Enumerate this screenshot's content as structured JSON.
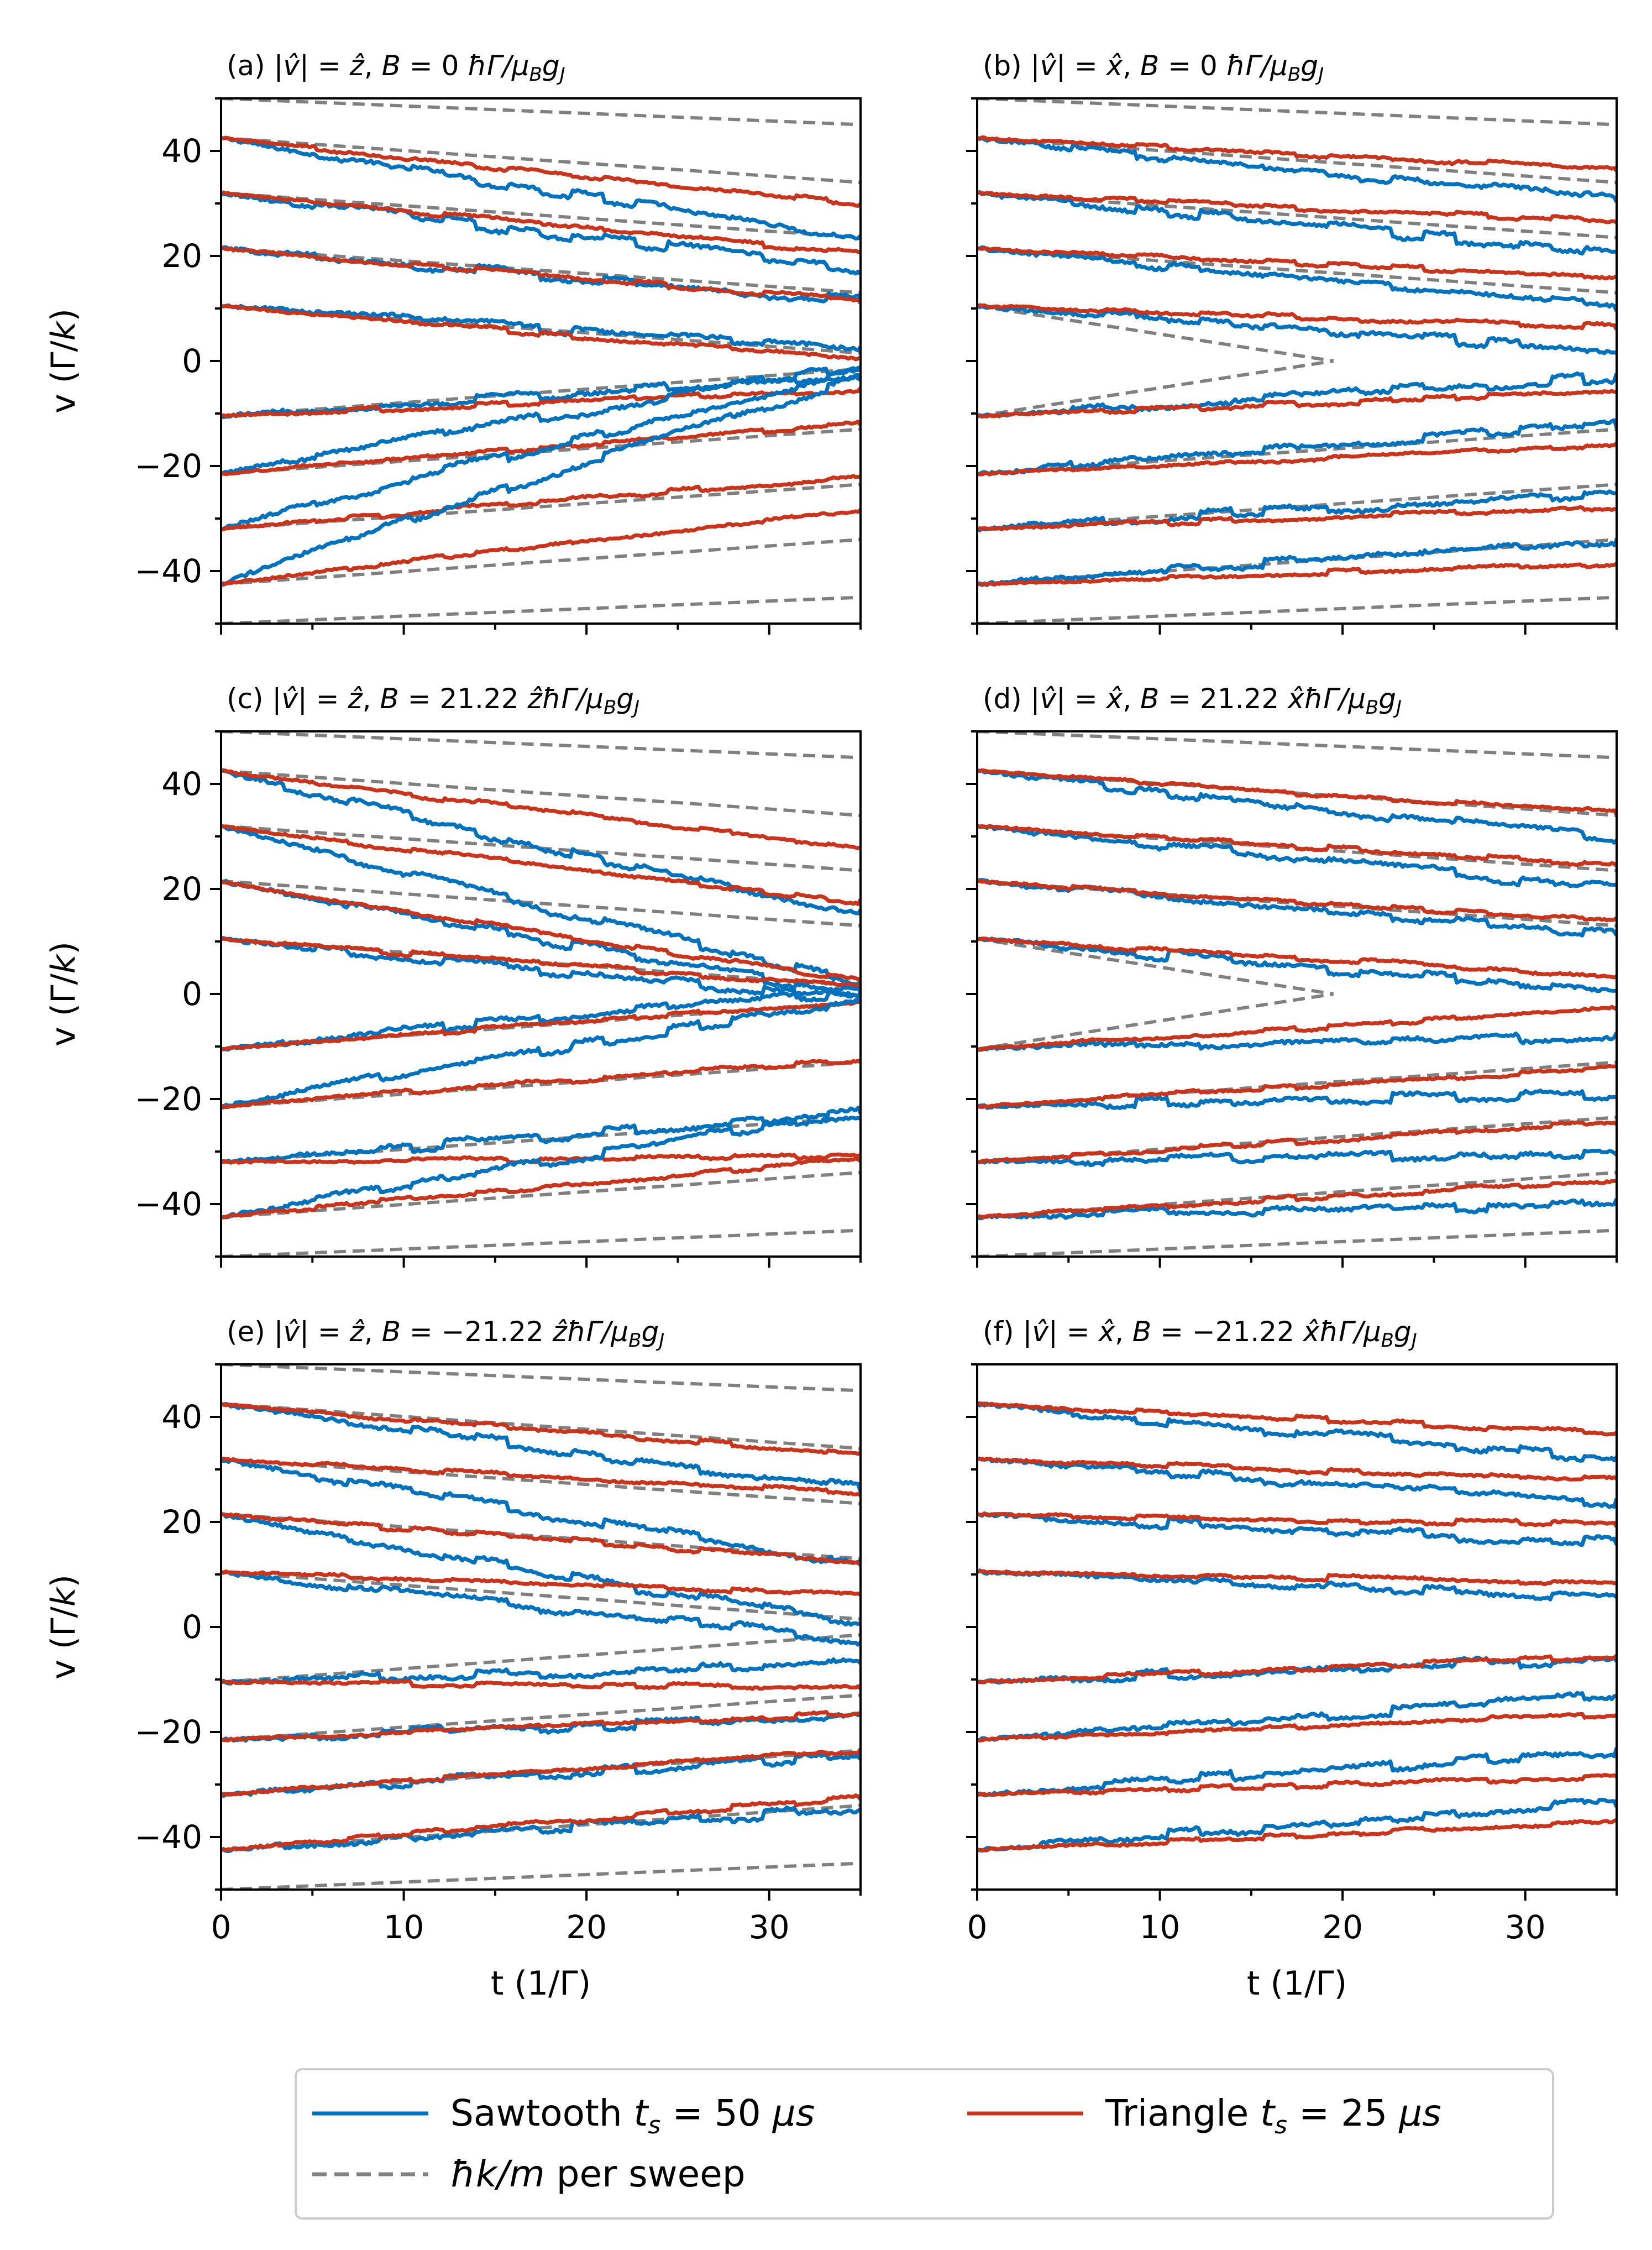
{
  "figure": {
    "colors": {
      "sawtooth": "#0072bd",
      "triangle": "#c8341c",
      "guide": "#808080"
    },
    "legend": {
      "location": "bottom-center",
      "entries": [
        {
          "key": "sawtooth",
          "label": "Sawtooth t_s = 50 μs",
          "parts": [
            "Sawtooth ",
            "t",
            "s",
            " = 50 ",
            "μs"
          ],
          "style": "solid"
        },
        {
          "key": "triangle",
          "label": "Triangle t_s = 25 μs",
          "parts": [
            "Triangle ",
            "t",
            "s",
            " = 25 ",
            "μs"
          ],
          "style": "solid"
        },
        {
          "key": "guide",
          "label": "ħk/m per sweep",
          "parts": [
            "ħk/m",
            " per sweep"
          ],
          "style": "dashed"
        }
      ]
    }
  },
  "chart_data": [
    {
      "id": "a",
      "type": "line",
      "row": 0,
      "col": 0,
      "title": "(a) |v̂| = ẑ, B = 0 ħΓ/μ_B g_J",
      "title_parts": {
        "prefix": "(a) ",
        "v": "v",
        "dir": "z",
        "b_value": " = 0 ",
        "b_dir": "",
        "unit": "ħΓ/μ",
        "unit_sub": "B",
        "g": "g",
        "g_sub": "J"
      },
      "xlabel": "t (1/Γ)",
      "ylabel": "v (Γ/k)",
      "xlim": [
        0,
        35
      ],
      "ylim": [
        -50,
        50
      ],
      "xticks": [
        0,
        10,
        20,
        30
      ],
      "yticks": [
        -40,
        -20,
        0,
        20,
        40
      ],
      "initial_velocities": [
        42.5,
        32,
        21.5,
        10.5,
        -10.5,
        -21.5,
        -32,
        -42.5
      ],
      "sawtooth_final": [
        23.5,
        17.5,
        11.5,
        2,
        -3,
        -1,
        -2,
        -3
      ],
      "triangle_final": [
        30,
        20.5,
        11.5,
        0.5,
        -5.5,
        -12,
        -22,
        -28.5
      ],
      "guide_lines": [
        [
          [
            0,
            50
          ],
          [
            35,
            45
          ]
        ],
        [
          [
            0,
            42.5
          ],
          [
            35,
            34
          ]
        ],
        [
          [
            0,
            32
          ],
          [
            35,
            23.5
          ]
        ],
        [
          [
            0,
            21.5
          ],
          [
            35,
            13
          ]
        ],
        [
          [
            0,
            10.5
          ],
          [
            35,
            1.5
          ]
        ],
        [
          [
            0,
            -10.5
          ],
          [
            35,
            -1.5
          ]
        ],
        [
          [
            0,
            -21.5
          ],
          [
            35,
            -13
          ]
        ],
        [
          [
            0,
            -32
          ],
          [
            35,
            -23.5
          ]
        ],
        [
          [
            0,
            -42.5
          ],
          [
            35,
            -34
          ]
        ],
        [
          [
            0,
            -50
          ],
          [
            35,
            -45
          ]
        ]
      ]
    },
    {
      "id": "b",
      "type": "line",
      "row": 0,
      "col": 1,
      "title": "(b) |v̂| = x̂, B = 0 ħΓ/μ_B g_J",
      "title_parts": {
        "prefix": "(b) ",
        "v": "v",
        "dir": "x",
        "b_value": " = 0 ",
        "b_dir": "",
        "unit": "ħΓ/μ",
        "unit_sub": "B",
        "g": "g",
        "g_sub": "J"
      },
      "xlabel": "t (1/Γ)",
      "ylabel": "",
      "xlim": [
        0,
        35
      ],
      "ylim": [
        -50,
        50
      ],
      "xticks": [
        0,
        10,
        20,
        30
      ],
      "yticks": [
        -40,
        -20,
        0,
        20,
        40
      ],
      "initial_velocities": [
        42.5,
        32,
        21.5,
        10.5,
        -10.5,
        -21.5,
        -32,
        -42.5
      ],
      "sawtooth_final": [
        30.5,
        20.5,
        10.5,
        2,
        -3,
        -12,
        -25,
        -34.5
      ],
      "triangle_final": [
        36.5,
        26.5,
        16,
        6.5,
        -6,
        -16,
        -28,
        -38.5
      ],
      "guide_lines": [
        [
          [
            0,
            50
          ],
          [
            35,
            45
          ]
        ],
        [
          [
            0,
            42.5
          ],
          [
            35,
            34
          ]
        ],
        [
          [
            0,
            32
          ],
          [
            35,
            23.5
          ]
        ],
        [
          [
            0,
            21.5
          ],
          [
            35,
            13
          ]
        ],
        [
          [
            0,
            10.5
          ],
          [
            19.5,
            0
          ]
        ],
        [
          [
            0,
            -10.5
          ],
          [
            19.5,
            0
          ]
        ],
        [
          [
            0,
            -21.5
          ],
          [
            35,
            -13
          ]
        ],
        [
          [
            0,
            -32
          ],
          [
            35,
            -23.5
          ]
        ],
        [
          [
            0,
            -42.5
          ],
          [
            35,
            -34
          ]
        ],
        [
          [
            0,
            -50
          ],
          [
            35,
            -45
          ]
        ]
      ]
    },
    {
      "id": "c",
      "type": "line",
      "row": 1,
      "col": 0,
      "title": "(c) |v̂| = ẑ, B = 21.22 ẑħΓ/μ_B g_J",
      "title_parts": {
        "prefix": "(c) ",
        "v": "v",
        "dir": "z",
        "b_value": " = 21.22 ",
        "b_dir": "z",
        "unit": "ħΓ/μ",
        "unit_sub": "B",
        "g": "g",
        "g_sub": "J"
      },
      "xlabel": "t (1/Γ)",
      "ylabel": "v (Γ/k)",
      "xlim": [
        0,
        35
      ],
      "ylim": [
        -50,
        50
      ],
      "xticks": [
        0,
        10,
        20,
        30
      ],
      "yticks": [
        -40,
        -20,
        0,
        20,
        40
      ],
      "initial_velocities": [
        42.5,
        32,
        21.5,
        10.5,
        -10.5,
        -21.5,
        -32,
        -42.5
      ],
      "sawtooth_final": [
        15,
        2,
        0,
        -1,
        1,
        -1,
        -23,
        -22.5
      ],
      "triangle_final": [
        28,
        17.5,
        2.5,
        1.5,
        -1.5,
        -12.5,
        -31,
        -31.5
      ],
      "guide_lines": [
        [
          [
            0,
            50
          ],
          [
            35,
            45
          ]
        ],
        [
          [
            0,
            42.5
          ],
          [
            35,
            34
          ]
        ],
        [
          [
            0,
            32
          ],
          [
            35,
            23.5
          ]
        ],
        [
          [
            0,
            21.5
          ],
          [
            35,
            13
          ]
        ],
        [
          [
            0,
            10.5
          ],
          [
            35,
            1.5
          ]
        ],
        [
          [
            0,
            -10.5
          ],
          [
            35,
            -1.5
          ]
        ],
        [
          [
            0,
            -21.5
          ],
          [
            35,
            -13
          ]
        ],
        [
          [
            0,
            -32
          ],
          [
            35,
            -23.5
          ]
        ],
        [
          [
            0,
            -42.5
          ],
          [
            35,
            -34
          ]
        ],
        [
          [
            0,
            -50
          ],
          [
            35,
            -45
          ]
        ]
      ]
    },
    {
      "id": "d",
      "type": "line",
      "row": 1,
      "col": 1,
      "title": "(d) |v̂| = x̂, B = 21.22 x̂ħΓ/μ_B g_J",
      "title_parts": {
        "prefix": "(d) ",
        "v": "v",
        "dir": "x",
        "b_value": " = 21.22 ",
        "b_dir": "x",
        "unit": "ħΓ/μ",
        "unit_sub": "B",
        "g": "g",
        "g_sub": "J"
      },
      "xlabel": "t (1/Γ)",
      "ylabel": "",
      "xlim": [
        0,
        35
      ],
      "ylim": [
        -50,
        50
      ],
      "xticks": [
        0,
        10,
        20,
        30
      ],
      "yticks": [
        -40,
        -20,
        0,
        20,
        40
      ],
      "initial_velocities": [
        42.5,
        32,
        21.5,
        10.5,
        -10.5,
        -21.5,
        -32,
        -42.5
      ],
      "sawtooth_final": [
        29.5,
        20,
        11.5,
        0.5,
        -8,
        -19,
        -30.5,
        -40
      ],
      "triangle_final": [
        34.5,
        24.5,
        14,
        3.5,
        -3,
        -14,
        -24.5,
        -35.5
      ],
      "guide_lines": [
        [
          [
            0,
            50
          ],
          [
            35,
            45
          ]
        ],
        [
          [
            0,
            42.5
          ],
          [
            35,
            34
          ]
        ],
        [
          [
            0,
            32
          ],
          [
            35,
            23.5
          ]
        ],
        [
          [
            0,
            21.5
          ],
          [
            35,
            13
          ]
        ],
        [
          [
            0,
            10.5
          ],
          [
            19.5,
            0
          ]
        ],
        [
          [
            0,
            -10.5
          ],
          [
            19.5,
            0
          ]
        ],
        [
          [
            0,
            -21.5
          ],
          [
            35,
            -13
          ]
        ],
        [
          [
            0,
            -32
          ],
          [
            35,
            -23.5
          ]
        ],
        [
          [
            0,
            -42.5
          ],
          [
            35,
            -34
          ]
        ],
        [
          [
            0,
            -50
          ],
          [
            35,
            -45
          ]
        ]
      ]
    },
    {
      "id": "e",
      "type": "line",
      "row": 2,
      "col": 0,
      "title": "(e) |v̂| = ẑ, B = −21.22 ẑħΓ/μ_B g_J",
      "title_parts": {
        "prefix": "(e) ",
        "v": "v",
        "dir": "z",
        "b_value": " = −21.22 ",
        "b_dir": "z",
        "unit": "ħΓ/μ",
        "unit_sub": "B",
        "g": "g",
        "g_sub": "J"
      },
      "xlabel": "t (1/Γ)",
      "ylabel": "v (Γ/k)",
      "xlim": [
        0,
        35
      ],
      "ylim": [
        -50,
        50
      ],
      "xticks": [
        0,
        10,
        20,
        30
      ],
      "yticks": [
        -40,
        -20,
        0,
        20,
        40
      ],
      "initial_velocities": [
        42.5,
        32,
        21.5,
        10.5,
        -10.5,
        -21.5,
        -32,
        -42.5
      ],
      "sawtooth_final": [
        26.5,
        12,
        0.5,
        -2.5,
        -7,
        -17,
        -24.5,
        -34.5
      ],
      "triangle_final": [
        33,
        25.5,
        12.5,
        6,
        -11.5,
        -16.5,
        -23.5,
        -32.5
      ],
      "guide_lines": [
        [
          [
            0,
            50
          ],
          [
            35,
            45
          ]
        ],
        [
          [
            0,
            42.5
          ],
          [
            35,
            34
          ]
        ],
        [
          [
            0,
            32
          ],
          [
            35,
            23.5
          ]
        ],
        [
          [
            0,
            21.5
          ],
          [
            35,
            13
          ]
        ],
        [
          [
            0,
            10.5
          ],
          [
            35,
            1.5
          ]
        ],
        [
          [
            0,
            -10.5
          ],
          [
            35,
            -1.5
          ]
        ],
        [
          [
            0,
            -21.5
          ],
          [
            35,
            -13
          ]
        ],
        [
          [
            0,
            -32
          ],
          [
            35,
            -23.5
          ]
        ],
        [
          [
            0,
            -42.5
          ],
          [
            35,
            -34
          ]
        ],
        [
          [
            0,
            -50
          ],
          [
            35,
            -45
          ]
        ]
      ]
    },
    {
      "id": "f",
      "type": "line",
      "row": 2,
      "col": 1,
      "title": "(f) |v̂| = x̂, B = −21.22 x̂ħΓ/μ_B g_J",
      "title_parts": {
        "prefix": "(f) ",
        "v": "v",
        "dir": "x",
        "b_value": " = −21.22 ",
        "b_dir": "x",
        "unit": "ħΓ/μ",
        "unit_sub": "B",
        "g": "g",
        "g_sub": "J"
      },
      "xlabel": "t (1/Γ)",
      "ylabel": "",
      "xlim": [
        0,
        35
      ],
      "ylim": [
        -50,
        50
      ],
      "xticks": [
        0,
        10,
        20,
        30
      ],
      "yticks": [
        -40,
        -20,
        0,
        20,
        40
      ],
      "initial_velocities": [
        42.5,
        32,
        21.5,
        10.5,
        -10.5,
        -21.5,
        -32,
        -42.5
      ],
      "sawtooth_final": [
        32,
        23.5,
        16,
        5.5,
        -6,
        -13,
        -23.5,
        -33.5
      ],
      "triangle_final": [
        37,
        28,
        19.5,
        8.5,
        -5.5,
        -16.5,
        -28.5,
        -37
      ]
    }
  ]
}
